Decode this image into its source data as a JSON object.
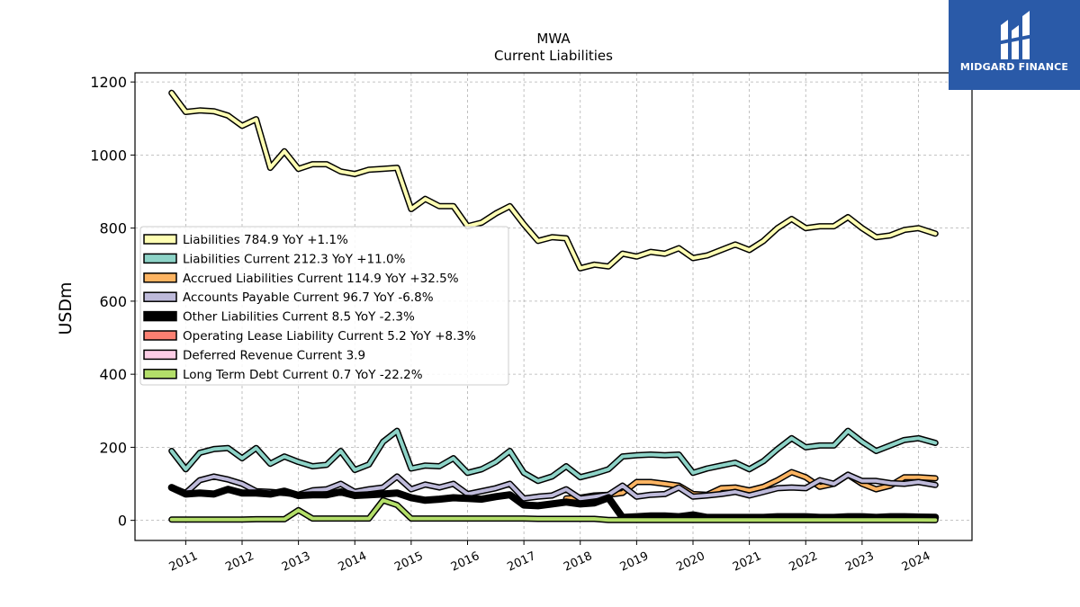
{
  "brand": {
    "name": "MIDGARD FINANCE"
  },
  "chart_data": {
    "type": "line",
    "title": "MWA",
    "subtitle": "Current  Liabilities",
    "ylabel": "USDm",
    "xlabel": "",
    "ylim": [
      -55,
      1225
    ],
    "xlim": [
      2010.1,
      2024.95
    ],
    "yticks": [
      0,
      200,
      400,
      600,
      800,
      1000,
      1200
    ],
    "xticks": [
      "2011",
      "2012",
      "2013",
      "2014",
      "2015",
      "2016",
      "2017",
      "2018",
      "2019",
      "2020",
      "2021",
      "2022",
      "2023",
      "2024"
    ],
    "grid": true,
    "legend_position": "upper-left",
    "series": [
      {
        "name": "Liabilities  784.9 YoY +1.1%",
        "color": "#ffffb3",
        "lw": 4,
        "x": [
          2010.75,
          2011.0,
          2011.25,
          2011.5,
          2011.75,
          2012.0,
          2012.25,
          2012.5,
          2012.75,
          2013.0,
          2013.25,
          2013.5,
          2013.75,
          2014.0,
          2014.25,
          2014.5,
          2014.75,
          2015.0,
          2015.25,
          2015.5,
          2015.75,
          2016.0,
          2016.25,
          2016.5,
          2016.75,
          2017.0,
          2017.25,
          2017.5,
          2017.75,
          2018.0,
          2018.25,
          2018.5,
          2018.75,
          2019.0,
          2019.25,
          2019.5,
          2019.75,
          2020.0,
          2020.25,
          2020.5,
          2020.75,
          2021.0,
          2021.25,
          2021.5,
          2021.75,
          2022.0,
          2022.25,
          2022.5,
          2022.75,
          2023.0,
          2023.25,
          2023.5,
          2023.75,
          2024.0,
          2024.3
        ],
        "y": [
          1170,
          1118,
          1122,
          1120,
          1108,
          1080,
          1098,
          965,
          1010,
          962,
          975,
          975,
          955,
          948,
          960,
          962,
          965,
          852,
          880,
          860,
          860,
          805,
          815,
          840,
          860,
          810,
          765,
          775,
          772,
          690,
          700,
          695,
          730,
          722,
          735,
          730,
          745,
          718,
          725,
          740,
          755,
          740,
          765,
          800,
          825,
          800,
          805,
          805,
          830,
          800,
          775,
          780,
          795,
          800,
          785
        ]
      },
      {
        "name": "Liabilities Current  212.3 YoY +11.0%",
        "color": "#8dd3c7",
        "lw": 4,
        "x": [
          2010.75,
          2011.0,
          2011.25,
          2011.5,
          2011.75,
          2012.0,
          2012.25,
          2012.5,
          2012.75,
          2013.0,
          2013.25,
          2013.5,
          2013.75,
          2014.0,
          2014.25,
          2014.5,
          2014.75,
          2015.0,
          2015.25,
          2015.5,
          2015.75,
          2016.0,
          2016.25,
          2016.5,
          2016.75,
          2017.0,
          2017.25,
          2017.5,
          2017.75,
          2018.0,
          2018.25,
          2018.5,
          2018.75,
          2019.0,
          2019.25,
          2019.5,
          2019.75,
          2020.0,
          2020.25,
          2020.5,
          2020.75,
          2021.0,
          2021.25,
          2021.5,
          2021.75,
          2022.0,
          2022.25,
          2022.5,
          2022.75,
          2023.0,
          2023.25,
          2023.5,
          2023.75,
          2024.0,
          2024.3
        ],
        "y": [
          190,
          140,
          185,
          195,
          198,
          170,
          198,
          155,
          175,
          160,
          148,
          152,
          190,
          138,
          153,
          215,
          245,
          142,
          150,
          148,
          170,
          130,
          140,
          160,
          190,
          130,
          108,
          120,
          148,
          118,
          128,
          140,
          175,
          178,
          180,
          178,
          180,
          130,
          142,
          150,
          158,
          140,
          162,
          195,
          225,
          200,
          205,
          205,
          245,
          215,
          190,
          205,
          220,
          225,
          212
        ]
      },
      {
        "name": "Accrued Liabilities Current  114.9 YoY +32.5%",
        "color": "#fdb462",
        "lw": 4,
        "x": [
          2017.75,
          2018.0,
          2018.25,
          2018.5,
          2018.75,
          2019.0,
          2019.25,
          2019.5,
          2019.75,
          2020.0,
          2020.25,
          2020.5,
          2020.75,
          2021.0,
          2021.25,
          2021.5,
          2021.75,
          2022.0,
          2022.25,
          2022.5,
          2022.75,
          2023.0,
          2023.25,
          2023.5,
          2023.75,
          2024.0,
          2024.3
        ],
        "y": [
          60,
          62,
          68,
          70,
          75,
          105,
          105,
          100,
          95,
          72,
          70,
          88,
          90,
          82,
          92,
          110,
          132,
          118,
          92,
          100,
          125,
          100,
          85,
          95,
          118,
          118,
          115
        ]
      },
      {
        "name": "Accounts Payable Current  96.7 YoY -6.8%",
        "color": "#bebada",
        "lw": 4,
        "x": [
          2010.75,
          2011.0,
          2011.25,
          2011.5,
          2011.75,
          2012.0,
          2012.25,
          2012.5,
          2012.75,
          2013.0,
          2013.25,
          2013.5,
          2013.75,
          2014.0,
          2014.25,
          2014.5,
          2014.75,
          2015.0,
          2015.25,
          2015.5,
          2015.75,
          2016.0,
          2016.25,
          2016.5,
          2016.75,
          2017.0,
          2017.25,
          2017.5,
          2017.75,
          2018.0,
          2018.25,
          2018.5,
          2018.75,
          2019.0,
          2019.25,
          2019.5,
          2019.75,
          2020.0,
          2020.25,
          2020.5,
          2020.75,
          2021.0,
          2021.25,
          2021.5,
          2021.75,
          2022.0,
          2022.25,
          2022.5,
          2022.75,
          2023.0,
          2023.25,
          2023.5,
          2023.75,
          2024.0,
          2024.3
        ],
        "y": [
          90,
          75,
          110,
          120,
          112,
          100,
          80,
          78,
          75,
          70,
          82,
          85,
          100,
          78,
          85,
          90,
          120,
          85,
          98,
          90,
          100,
          72,
          80,
          88,
          100,
          60,
          65,
          68,
          85,
          60,
          65,
          70,
          95,
          65,
          70,
          72,
          90,
          65,
          68,
          72,
          78,
          68,
          78,
          88,
          90,
          88,
          110,
          100,
          125,
          108,
          108,
          102,
          100,
          105,
          97
        ]
      },
      {
        "name": "Other Liabilities Current  8.5 YoY -2.3%",
        "color": "#000000",
        "lw": 8,
        "x": [
          2010.75,
          2011.0,
          2011.25,
          2011.5,
          2011.75,
          2012.0,
          2012.25,
          2012.5,
          2012.75,
          2013.0,
          2013.25,
          2013.5,
          2013.75,
          2014.0,
          2014.25,
          2014.5,
          2014.75,
          2015.0,
          2015.25,
          2015.5,
          2015.75,
          2016.0,
          2016.25,
          2016.5,
          2016.75,
          2017.0,
          2017.25,
          2017.5,
          2017.75,
          2018.0,
          2018.25,
          2018.5,
          2018.75,
          2019.0,
          2019.25,
          2019.5,
          2019.75,
          2020.0,
          2020.25,
          2020.5,
          2020.75,
          2021.0,
          2021.25,
          2021.5,
          2021.75,
          2022.0,
          2022.25,
          2022.5,
          2022.75,
          2023.0,
          2023.25,
          2023.5,
          2023.75,
          2024.0,
          2024.3
        ],
        "y": [
          90,
          72,
          75,
          72,
          85,
          75,
          75,
          72,
          80,
          68,
          70,
          70,
          78,
          68,
          70,
          72,
          75,
          62,
          55,
          58,
          62,
          60,
          58,
          65,
          70,
          42,
          40,
          45,
          50,
          45,
          48,
          62,
          8,
          10,
          12,
          12,
          10,
          15,
          8,
          8,
          8,
          8,
          8,
          10,
          10,
          10,
          8,
          8,
          10,
          10,
          8,
          10,
          10,
          9,
          8.5
        ]
      },
      {
        "name": "Operating Lease Liability Current  5.2 YoY +8.3%",
        "color": "#fb8072",
        "lw": 4,
        "x": [
          2018.75,
          2019.0,
          2019.25,
          2019.5,
          2019.75,
          2020.0,
          2020.25,
          2020.5,
          2020.75,
          2021.0,
          2021.25,
          2021.5,
          2021.75,
          2022.0,
          2022.25,
          2022.5,
          2022.75,
          2023.0,
          2023.25,
          2023.5,
          2023.75,
          2024.0,
          2024.3
        ],
        "y": [
          5,
          5,
          5,
          5,
          5,
          5,
          5,
          5,
          5,
          5,
          5,
          5,
          5,
          5,
          5,
          5,
          5,
          5,
          5,
          5,
          5,
          5,
          5.2
        ]
      },
      {
        "name": "Deferred Revenue Current  3.9",
        "color": "#fccde5",
        "lw": 4,
        "x": [
          2018.75,
          2019.0,
          2019.25,
          2019.5,
          2019.75,
          2020.0,
          2020.25,
          2020.5,
          2020.75,
          2021.0,
          2021.25,
          2021.5,
          2021.75,
          2022.0,
          2022.25,
          2022.5,
          2022.75,
          2023.0,
          2023.25,
          2023.5,
          2023.75,
          2024.0,
          2024.3
        ],
        "y": [
          3,
          3,
          3,
          3,
          3,
          3,
          3,
          4,
          4,
          4,
          4,
          4,
          4,
          4,
          4,
          4,
          4,
          4,
          4,
          4,
          4,
          4,
          3.9
        ]
      },
      {
        "name": "Long Term Debt Current  0.7 YoY -22.2%",
        "color": "#b3de69",
        "lw": 4,
        "x": [
          2010.75,
          2011.0,
          2011.25,
          2011.5,
          2011.75,
          2012.0,
          2012.25,
          2012.5,
          2012.75,
          2013.0,
          2013.25,
          2013.5,
          2013.75,
          2014.0,
          2014.25,
          2014.5,
          2014.75,
          2015.0,
          2015.25,
          2015.5,
          2015.75,
          2016.0,
          2016.25,
          2016.5,
          2016.75,
          2017.0,
          2017.25,
          2017.5,
          2017.75,
          2018.0,
          2018.25,
          2018.5,
          2018.75,
          2019.0,
          2019.25,
          2019.5,
          2019.75,
          2020.0,
          2020.25,
          2020.5,
          2020.75,
          2021.0,
          2021.25,
          2021.5,
          2021.75,
          2022.0,
          2022.25,
          2022.5,
          2022.75,
          2023.0,
          2023.25,
          2023.5,
          2023.75,
          2024.0,
          2024.3
        ],
        "y": [
          2,
          2,
          2,
          2,
          2,
          2,
          3,
          3,
          3,
          28,
          5,
          5,
          5,
          5,
          5,
          55,
          42,
          5,
          5,
          5,
          5,
          5,
          5,
          5,
          5,
          5,
          4,
          4,
          4,
          4,
          4,
          1,
          1,
          1,
          1,
          1,
          1,
          1,
          1,
          1,
          1,
          1,
          1,
          1,
          1,
          1,
          1,
          1,
          1,
          1,
          1,
          1,
          1,
          1,
          0.7
        ]
      }
    ]
  }
}
